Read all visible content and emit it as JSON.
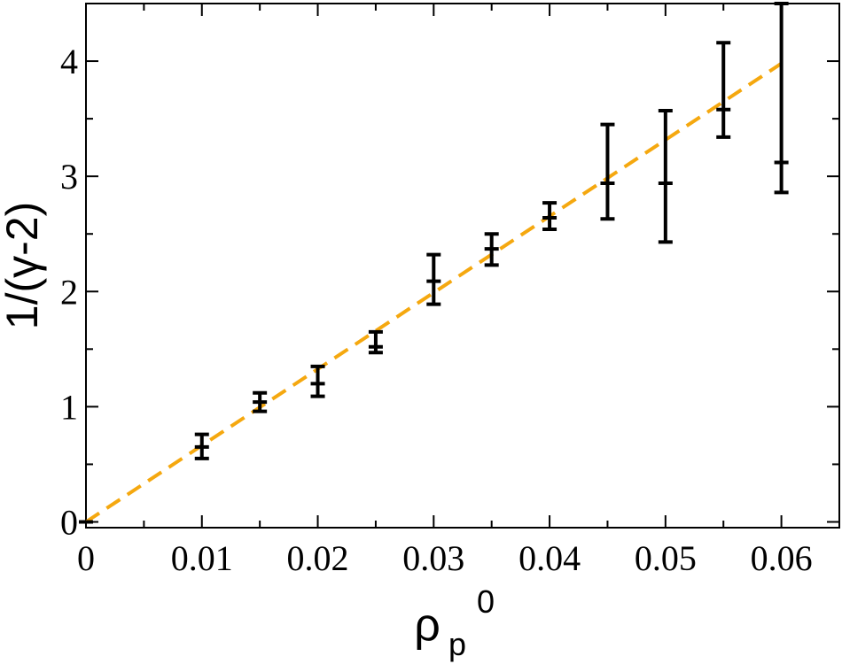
{
  "chart_data": {
    "type": "scatter",
    "title": "",
    "xlabel_main": "ρ",
    "xlabel_sub": "p",
    "xlabel_sup": "0",
    "ylabel": "1/(γ-2)",
    "xlim": [
      0,
      0.065
    ],
    "ylim": [
      -0.05,
      4.5
    ],
    "x_ticks": [
      0,
      0.01,
      0.02,
      0.03,
      0.04,
      0.05,
      0.06
    ],
    "x_tick_labels": [
      "0",
      "0.01",
      "0.02",
      "0.03",
      "0.04",
      "0.05",
      "0.06"
    ],
    "x_minor_ticks": [
      0.005,
      0.015,
      0.025,
      0.035,
      0.045,
      0.055,
      0.065
    ],
    "y_ticks": [
      0,
      1,
      2,
      3,
      4
    ],
    "y_tick_labels": [
      "0",
      "1",
      "2",
      "3",
      "4"
    ],
    "y_minor_ticks": [
      0.5,
      1.5,
      2.5,
      3.5
    ],
    "grid": false,
    "series": [
      {
        "type": "errorbar",
        "color": "#000000",
        "points": [
          {
            "x": 0.0,
            "y": 0.0,
            "ylow": 0.0,
            "yhigh": 0.0
          },
          {
            "x": 0.01,
            "y": 0.65,
            "ylow": 0.55,
            "yhigh": 0.76
          },
          {
            "x": 0.015,
            "y": 1.04,
            "ylow": 0.96,
            "yhigh": 1.12
          },
          {
            "x": 0.02,
            "y": 1.2,
            "ylow": 1.09,
            "yhigh": 1.35
          },
          {
            "x": 0.025,
            "y": 1.52,
            "ylow": 1.47,
            "yhigh": 1.65
          },
          {
            "x": 0.03,
            "y": 2.09,
            "ylow": 1.89,
            "yhigh": 2.32
          },
          {
            "x": 0.035,
            "y": 2.37,
            "ylow": 2.23,
            "yhigh": 2.5
          },
          {
            "x": 0.04,
            "y": 2.64,
            "ylow": 2.54,
            "yhigh": 2.77
          },
          {
            "x": 0.045,
            "y": 2.94,
            "ylow": 2.63,
            "yhigh": 3.45
          },
          {
            "x": 0.05,
            "y": 2.94,
            "ylow": 2.43,
            "yhigh": 3.57
          },
          {
            "x": 0.055,
            "y": 3.58,
            "ylow": 3.34,
            "yhigh": 4.16
          },
          {
            "x": 0.06,
            "y": 3.12,
            "ylow": 2.86,
            "yhigh": 4.5
          }
        ]
      },
      {
        "type": "line",
        "style": "dashed",
        "color": "#F5A80F",
        "x": [
          0.0,
          0.06
        ],
        "y": [
          0.0,
          3.98
        ]
      }
    ]
  }
}
